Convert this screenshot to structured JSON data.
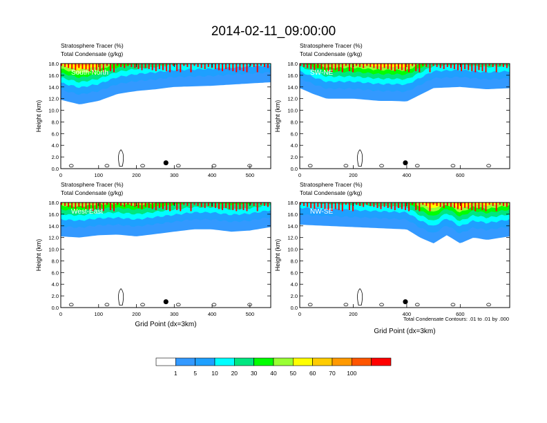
{
  "figure": {
    "title": "2014-02-11_09:00:00",
    "footnote": "Total Condensate Contours: .01 to .01 by .000"
  },
  "colors": {
    "levels": [
      "#ffffff",
      "#3399ff",
      "#1ea0ff",
      "#00ffff",
      "#00e680",
      "#00ff00",
      "#99ff33",
      "#ffff00",
      "#ffcc00",
      "#ff9900",
      "#ff5500",
      "#ff0000"
    ]
  },
  "colorbar": {
    "labels": [
      "1",
      "5",
      "10",
      "20",
      "30",
      "40",
      "50",
      "60",
      "70",
      "100"
    ]
  },
  "chart_data": [
    {
      "type": "contour",
      "label": "South-North",
      "title_line1": "Stratosphere Tracer   (%)",
      "title_line2": "Total Condensate   (g/kg)",
      "ylabel": "Height (km)",
      "xlabel": "",
      "xlim": [
        0,
        555
      ],
      "ylim": [
        0,
        18
      ],
      "x_ticks": [
        "0",
        "100",
        "200",
        "300",
        "400",
        "500"
      ],
      "y_ticks": [
        "0.0",
        "2.0",
        "4.0",
        "6.0",
        "8.0",
        "10.0",
        "12.0",
        "14.0",
        "16.0",
        "18.0"
      ],
      "marker_x": 278,
      "tracer_boundary_km": {
        "x": [
          0,
          50,
          100,
          150,
          200,
          250,
          300,
          350,
          400,
          450,
          500,
          555
        ],
        "y": [
          11.8,
          11.0,
          11.6,
          12.8,
          13.3,
          13.6,
          14.0,
          14.1,
          14.2,
          14.4,
          14.6,
          14.8
        ]
      }
    },
    {
      "type": "contour",
      "label": "SW-NE",
      "title_line1": "Stratosphere Tracer   (%)",
      "title_line2": "Total Condensate   (g/kg)",
      "ylabel": "Height (km)",
      "xlabel": "",
      "xlim": [
        0,
        785
      ],
      "ylim": [
        0,
        18
      ],
      "x_ticks": [
        "0",
        "200",
        "400",
        "600"
      ],
      "y_ticks": [
        "0.0",
        "2.0",
        "4.0",
        "6.0",
        "8.0",
        "10.0",
        "12.0",
        "14.0",
        "16.0",
        "18.0"
      ],
      "marker_x": 395,
      "tracer_boundary_km": {
        "x": [
          0,
          50,
          100,
          200,
          300,
          350,
          400,
          500,
          600,
          700,
          785
        ],
        "y": [
          13.8,
          12.8,
          12.0,
          12.0,
          11.6,
          11.6,
          11.5,
          13.8,
          14.0,
          13.6,
          13.8
        ]
      }
    },
    {
      "type": "contour",
      "label": "West-East",
      "title_line1": "Stratosphere Tracer   (%)",
      "title_line2": "Total Condensate   (g/kg)",
      "ylabel": "Height (km)",
      "xlabel": "Grid Point (dx=3km)",
      "xlim": [
        0,
        555
      ],
      "ylim": [
        0,
        18
      ],
      "x_ticks": [
        "0",
        "100",
        "200",
        "300",
        "400",
        "500"
      ],
      "y_ticks": [
        "0.0",
        "2.0",
        "4.0",
        "6.0",
        "8.0",
        "10.0",
        "12.0",
        "14.0",
        "16.0",
        "18.0"
      ],
      "marker_x": 278,
      "tracer_boundary_km": {
        "x": [
          0,
          50,
          100,
          150,
          200,
          250,
          300,
          350,
          400,
          450,
          500,
          555
        ],
        "y": [
          12.2,
          12.0,
          12.4,
          12.5,
          12.2,
          12.6,
          13.0,
          13.4,
          13.4,
          13.0,
          13.2,
          13.8
        ]
      }
    },
    {
      "type": "contour",
      "label": "NW-SE",
      "title_line1": "Stratosphere Tracer   (%)",
      "title_line2": "Total Condensate   (g/kg)",
      "ylabel": "Height (km)",
      "xlabel": "Grid Point (dx=3km)",
      "xlim": [
        0,
        785
      ],
      "ylim": [
        0,
        18
      ],
      "x_ticks": [
        "0",
        "200",
        "400",
        "600"
      ],
      "y_ticks": [
        "0.0",
        "2.0",
        "4.0",
        "6.0",
        "8.0",
        "10.0",
        "12.0",
        "14.0",
        "16.0",
        "18.0"
      ],
      "marker_x": 395,
      "tracer_boundary_km": {
        "x": [
          0,
          100,
          200,
          300,
          400,
          450,
          500,
          550,
          600,
          650,
          700,
          785
        ],
        "y": [
          14.2,
          14.0,
          13.8,
          13.6,
          13.4,
          12.0,
          11.0,
          12.4,
          11.0,
          12.0,
          11.6,
          12.2
        ]
      }
    }
  ]
}
